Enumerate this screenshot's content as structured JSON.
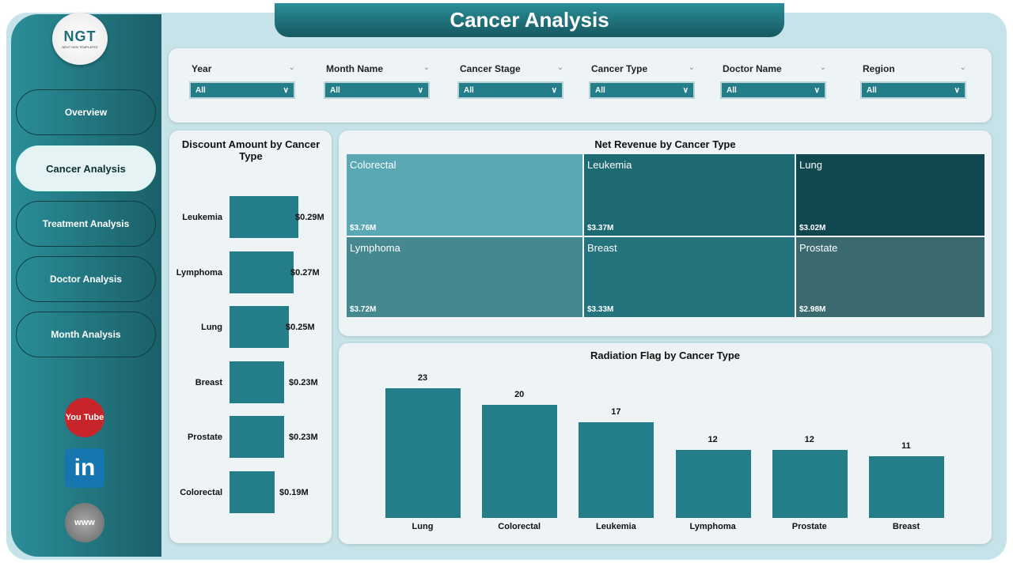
{
  "header": {
    "title": "Cancer Analysis"
  },
  "logo": {
    "text": "NGT",
    "subtext": "NEXT GEN TEMPLATES"
  },
  "sidebar": {
    "items": [
      {
        "label": "Overview"
      },
      {
        "label": "Cancer Analysis",
        "active": true
      },
      {
        "label": "Treatment Analysis"
      },
      {
        "label": "Doctor Analysis"
      },
      {
        "label": "Month Analysis"
      }
    ],
    "social": [
      {
        "icon": "youtube-icon",
        "text": "You Tube"
      },
      {
        "icon": "linkedin-icon",
        "text": "in"
      },
      {
        "icon": "website-icon",
        "text": "www"
      }
    ]
  },
  "filters": [
    {
      "label": "Year",
      "value": "All"
    },
    {
      "label": "Month Name",
      "value": "All"
    },
    {
      "label": "Cancer Stage",
      "value": "All"
    },
    {
      "label": "Cancer Type",
      "value": "All"
    },
    {
      "label": "Doctor Name",
      "value": "All"
    },
    {
      "label": "Region",
      "value": "All"
    }
  ],
  "chart_data": [
    {
      "type": "bar",
      "orientation": "horizontal",
      "title": "Discount Amount by Cancer Type",
      "categories": [
        "Leukemia",
        "Lymphoma",
        "Lung",
        "Breast",
        "Prostate",
        "Colorectal"
      ],
      "values": [
        0.29,
        0.27,
        0.25,
        0.23,
        0.23,
        0.19
      ],
      "labels": [
        "$0.29M",
        "$0.27M",
        "$0.25M",
        "$0.23M",
        "$0.23M",
        "$0.19M"
      ],
      "unit": "$M",
      "color": "#237e89"
    },
    {
      "type": "treemap",
      "title": "Net Revenue by Cancer Type",
      "categories": [
        "Colorectal",
        "Leukemia",
        "Lung",
        "Lymphoma",
        "Breast",
        "Prostate"
      ],
      "values": [
        3.76,
        3.37,
        3.02,
        3.72,
        3.33,
        2.98
      ],
      "labels": [
        "$3.76M",
        "$3.37M",
        "$3.02M",
        "$3.72M",
        "$3.33M",
        "$2.98M"
      ],
      "colors": [
        "#5aa8b3",
        "#1d6a72",
        "#11474e",
        "#468890",
        "#24737d",
        "#3a6a70"
      ]
    },
    {
      "type": "bar",
      "title": "Radiation Flag by Cancer Type",
      "categories": [
        "Lung",
        "Colorectal",
        "Leukemia",
        "Lymphoma",
        "Prostate",
        "Breast"
      ],
      "values": [
        23,
        20,
        17,
        12,
        12,
        11
      ],
      "color": "#237e89"
    }
  ]
}
